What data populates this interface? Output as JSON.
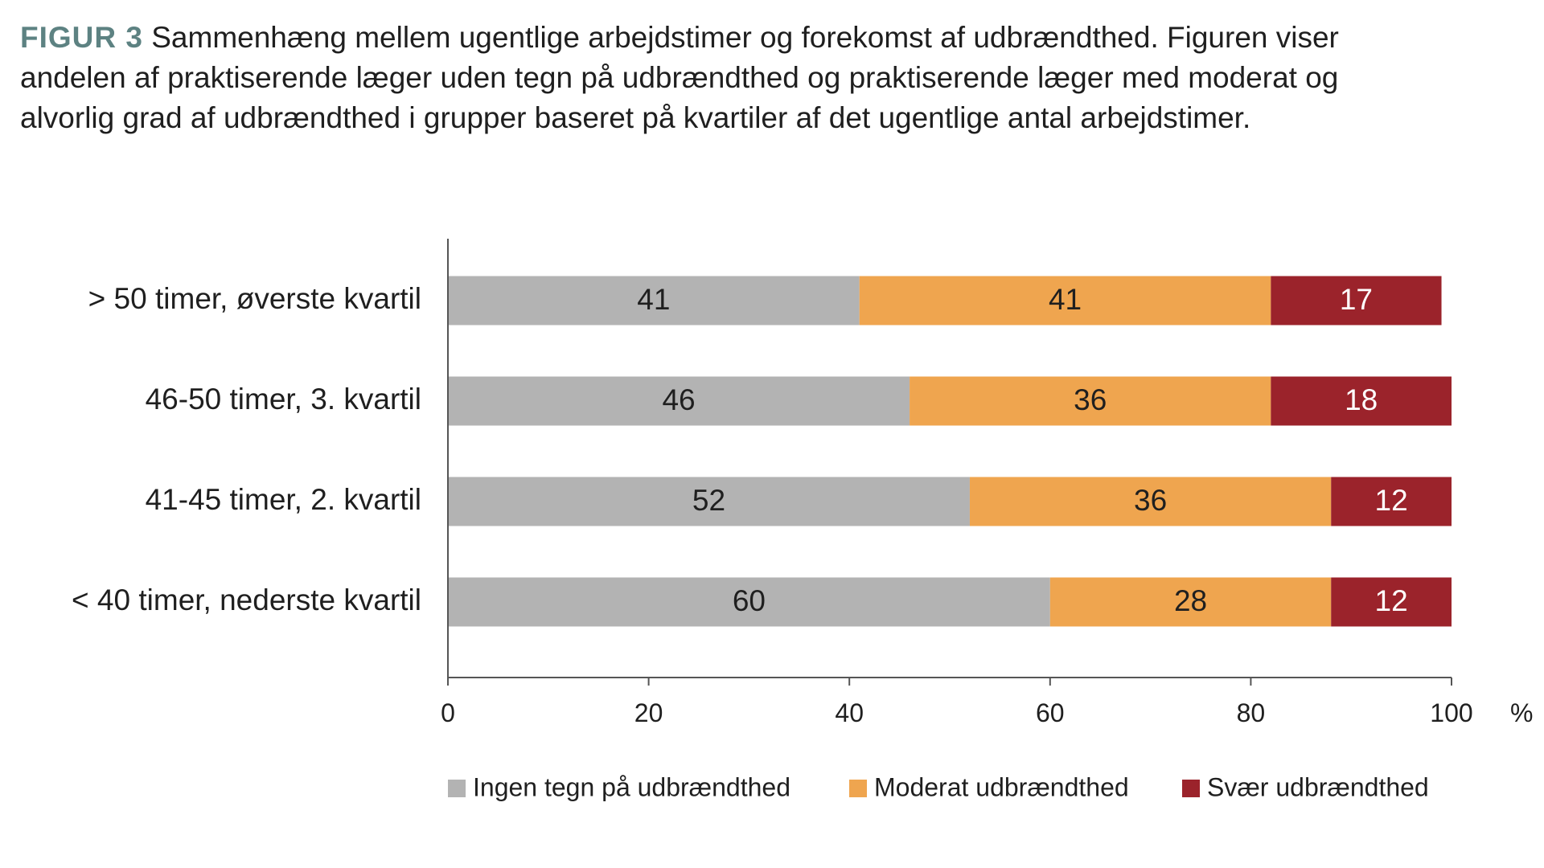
{
  "caption": {
    "label": "FIGUR 3",
    "text": "Sammenhæng mellem ugentlige arbejdstimer og forekomst af udbrændthed. Figuren viser andelen af praktiserende læger uden tegn på udbrændthed og praktiserende læger med moderat og alvorlig grad af udbrændthed i grupper baseret på kvartiler af det ugentlige antal arbejdstimer."
  },
  "chart_data": {
    "type": "bar",
    "orientation": "horizontal",
    "stacked": true,
    "categories": [
      "> 50 timer, øverste kvartil",
      "46-50 timer, 3. kvartil",
      "41-45 timer, 2. kvartil",
      "< 40 timer, nederste kvartil"
    ],
    "series": [
      {
        "name": "Ingen tegn på udbrændthed",
        "color": "#b3b3b3",
        "label_color": "#1f1f1f",
        "values": [
          41,
          46,
          52,
          60
        ]
      },
      {
        "name": "Moderat udbrændthed",
        "color": "#efa54f",
        "label_color": "#1f1f1f",
        "values": [
          41,
          36,
          36,
          28
        ]
      },
      {
        "name": "Svær udbrændthed",
        "color": "#9b232b",
        "label_color": "#ffffff",
        "values": [
          17,
          18,
          12,
          12
        ]
      }
    ],
    "xlim": [
      0,
      100
    ],
    "xticks": [
      0,
      20,
      40,
      60,
      80,
      100
    ],
    "xunit": "%",
    "grid": false,
    "legend": "bottom"
  }
}
